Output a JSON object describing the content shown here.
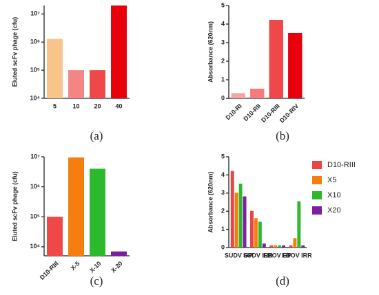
{
  "chart_data": [
    {
      "type": "bar",
      "panel_label": "(a)",
      "ylabel": "Eluted scFv phage (cfu)",
      "log_scale": true,
      "categories": [
        "5",
        "10",
        "20",
        "40"
      ],
      "values": [
        1300000,
        100000,
        100000,
        20000000
      ],
      "colors": [
        "#f9c48a",
        "#f38585",
        "#ee4848",
        "#e8000b"
      ],
      "ylim": [
        10000,
        20000000
      ],
      "yticks": [
        {
          "value": 10000,
          "label": "10⁴"
        },
        {
          "value": 100000,
          "label": "10⁵"
        },
        {
          "value": 1000000,
          "label": "10⁶"
        },
        {
          "value": 10000000,
          "label": "10⁷"
        }
      ]
    },
    {
      "type": "bar",
      "panel_label": "(b)",
      "ylabel": "Absorbance (620nm)",
      "log_scale": false,
      "categories": [
        "D10-RI",
        "D10-RII",
        "D10-RIII",
        "D10-RIV"
      ],
      "values": [
        0.28,
        0.52,
        4.22,
        3.52
      ],
      "colors": [
        "#f9a3a3",
        "#f67c7c",
        "#f04848",
        "#e8000b"
      ],
      "ylim": [
        0,
        5
      ],
      "yticks": [
        0,
        1,
        2,
        3,
        4,
        5
      ]
    },
    {
      "type": "bar",
      "panel_label": "(c)",
      "ylabel": "Eluted scFv phage (cfu)",
      "log_scale": true,
      "categories": [
        "D10-RIII",
        "X-5",
        "X-10",
        "X-20"
      ],
      "values": [
        100000,
        9500000,
        4000000,
        7000
      ],
      "colors": [
        "#f04848",
        "#f67d0f",
        "#2db92d",
        "#7b1fa2"
      ],
      "ylim": [
        5000,
        10000000
      ],
      "yticks": [
        {
          "value": 10000,
          "label": "10⁴"
        },
        {
          "value": 100000,
          "label": "10⁵"
        },
        {
          "value": 1000000,
          "label": "10⁶"
        },
        {
          "value": 10000000,
          "label": "10⁷"
        }
      ]
    },
    {
      "type": "grouped_bar",
      "panel_label": "(d)",
      "ylabel": "Absorbance (620nm)",
      "log_scale": false,
      "categories": [
        "SUDV GP",
        "SUDV IRR",
        "EBOV GP",
        "EBOV IRR"
      ],
      "series": [
        {
          "name": "D10-RIII",
          "color": "#ea4444",
          "values": [
            4.22,
            2.02,
            0.12,
            0.12
          ]
        },
        {
          "name": "X5",
          "color": "#f67d0f",
          "values": [
            3.02,
            1.62,
            0.12,
            0.52
          ]
        },
        {
          "name": "X10",
          "color": "#2db92d",
          "values": [
            3.52,
            1.42,
            0.12,
            2.55
          ]
        },
        {
          "name": "X20",
          "color": "#7b1fa2",
          "values": [
            2.82,
            0.22,
            0.12,
            0.12
          ]
        }
      ],
      "legend": "top-right",
      "ylim": [
        0,
        5
      ],
      "yticks": [
        0,
        1,
        2,
        3,
        4,
        5
      ]
    }
  ]
}
